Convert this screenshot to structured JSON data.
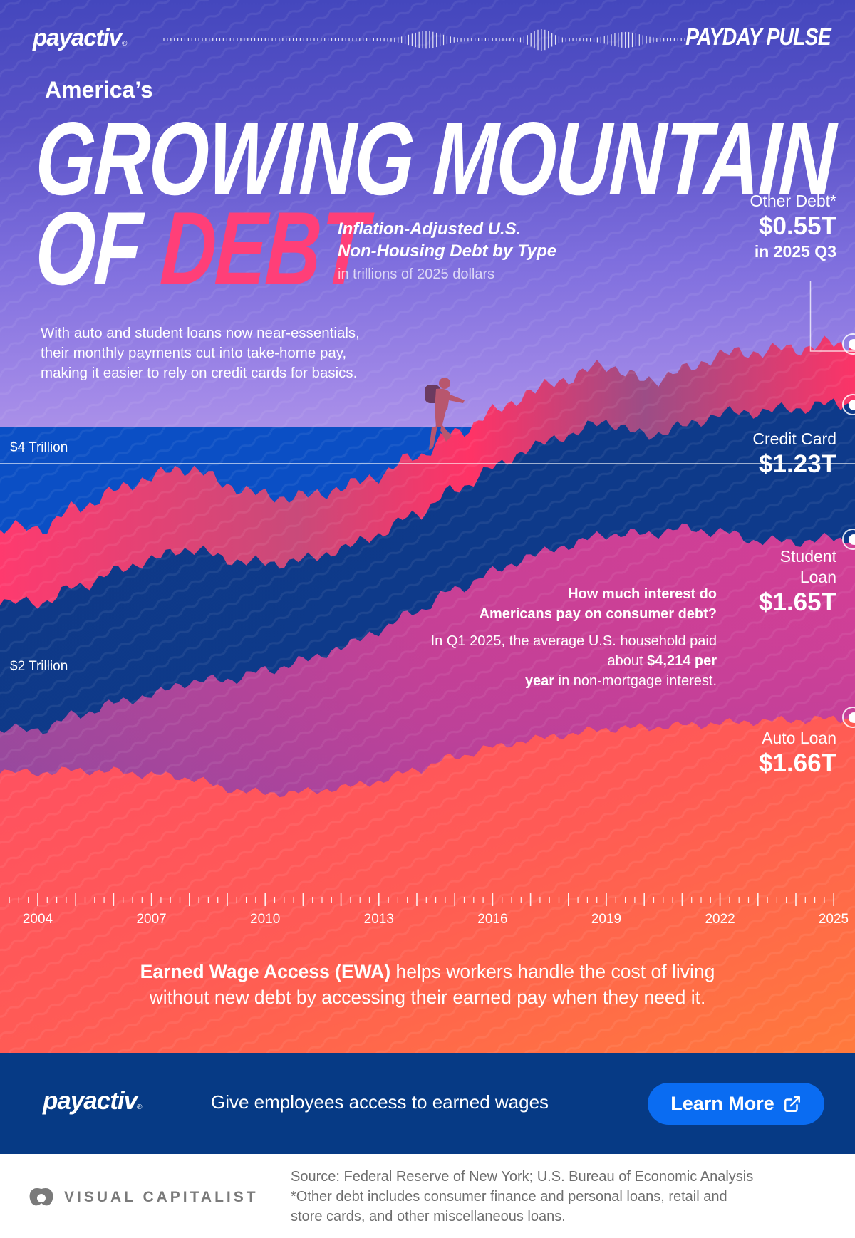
{
  "header": {
    "brand": "payactiv",
    "brand_mark": "®",
    "series_logo": "PAYDAY PULSE"
  },
  "title": {
    "kicker": "America’s",
    "line1": "GROWING MOUNTAIN",
    "line2_prefix": "OF",
    "line2_accent": "DEBT",
    "subtitle_line1": "Inflation-Adjusted U.S.",
    "subtitle_line2": "Non-Housing Debt by Type",
    "units": "in trillions of 2025 dollars"
  },
  "intro_text": "With auto and student loans now near-essentials, their monthly payments cut into take-home pay, making it easier to rely on credit cards for basics.",
  "gridlines": [
    {
      "label": "$4 Trillion",
      "value": 4
    },
    {
      "label": "$2 Trillion",
      "value": 2
    }
  ],
  "series_labels": {
    "other": {
      "name": "Other Debt*",
      "value": "$0.55T",
      "sub": "in 2025 Q3"
    },
    "credit": {
      "name": "Credit Card",
      "value": "$1.23T"
    },
    "student": {
      "name_line1": "Student",
      "name_line2": "Loan",
      "value": "$1.65T"
    },
    "auto": {
      "name": "Auto Loan",
      "value": "$1.66T"
    }
  },
  "callout": {
    "question_line1": "How much interest do",
    "question_line2": "Americans pay on consumer debt?",
    "answer_pre": "In Q1 2025, the average U.S. household paid about ",
    "answer_bold1": "$4,214 per",
    "answer_bold2": "year",
    "answer_post": " in non-mortgage interest."
  },
  "axis": {
    "years": [
      "2004",
      "2007",
      "2010",
      "2013",
      "2016",
      "2019",
      "2022",
      "2025"
    ]
  },
  "ewa": {
    "bold": "Earned Wage Access (EWA)",
    "rest_line1": " helps workers handle the cost of living",
    "line2": "without new debt by accessing their earned pay when they need it."
  },
  "cta": {
    "brand": "payactiv",
    "text": "Give employees access to earned wages",
    "button_label": "Learn More",
    "button_icon": "external-link-icon"
  },
  "footer": {
    "logo_text": "VISUAL CAPITALIST",
    "source_line": "Source: Federal Reserve of New York; U.S. Bureau of Economic Analysis",
    "note_line1": "*Other debt includes consumer finance and personal loans, retail and",
    "note_line2": "store cards, and other miscellaneous loans."
  },
  "colors": {
    "accent_pink": "#ff3f78",
    "other": "#ff3366",
    "credit": "#0e3a8c",
    "student": "#d23f96",
    "auto": "#ff5a5a",
    "cta_band": "#063a85",
    "cta_button": "#0a6cf2"
  },
  "chart_data": {
    "type": "area",
    "stacked": true,
    "title": "Inflation-Adjusted U.S. Non-Housing Debt by Type",
    "subtitle": "in trillions of 2025 dollars",
    "xlabel": "",
    "ylabel": "Trillions of 2025 dollars",
    "ylim": [
      0,
      5.5
    ],
    "grid": [
      2,
      4
    ],
    "x": [
      2004,
      2005,
      2006,
      2007,
      2008,
      2009,
      2010,
      2011,
      2012,
      2013,
      2014,
      2015,
      2016,
      2017,
      2018,
      2019,
      2020,
      2021,
      2022,
      2023,
      2024,
      2025
    ],
    "x_tick_labels": [
      "2004",
      "2007",
      "2010",
      "2013",
      "2016",
      "2019",
      "2022",
      "2025"
    ],
    "series": [
      {
        "name": "Auto Loan",
        "values": [
          1.17,
          1.19,
          1.18,
          1.15,
          1.12,
          1.02,
          0.98,
          0.99,
          1.03,
          1.09,
          1.2,
          1.31,
          1.4,
          1.47,
          1.52,
          1.57,
          1.58,
          1.6,
          1.62,
          1.64,
          1.65,
          1.66
        ]
      },
      {
        "name": "Student Loan",
        "values": [
          0.39,
          0.5,
          0.62,
          0.73,
          0.88,
          1.0,
          1.12,
          1.2,
          1.28,
          1.38,
          1.45,
          1.53,
          1.6,
          1.68,
          1.73,
          1.78,
          1.77,
          1.8,
          1.75,
          1.65,
          1.63,
          1.65
        ]
      },
      {
        "name": "Credit Card",
        "values": [
          1.16,
          1.17,
          1.2,
          1.24,
          1.22,
          1.1,
          0.98,
          0.92,
          0.9,
          0.88,
          0.89,
          0.91,
          0.95,
          0.99,
          1.01,
          1.03,
          0.9,
          0.93,
          1.08,
          1.18,
          1.22,
          1.23
        ]
      },
      {
        "name": "Other Debt*",
        "values": [
          0.68,
          0.72,
          0.74,
          0.76,
          0.74,
          0.68,
          0.62,
          0.58,
          0.56,
          0.54,
          0.53,
          0.52,
          0.51,
          0.51,
          0.52,
          0.52,
          0.5,
          0.51,
          0.54,
          0.55,
          0.55,
          0.55
        ]
      }
    ],
    "annotations": [
      "Other Debt* $0.55T in 2025 Q3",
      "Credit Card $1.23T",
      "Student Loan $1.65T",
      "Auto Loan $1.66T",
      "In Q1 2025, the average U.S. household paid about $4,214 per year in non-mortgage interest."
    ]
  }
}
